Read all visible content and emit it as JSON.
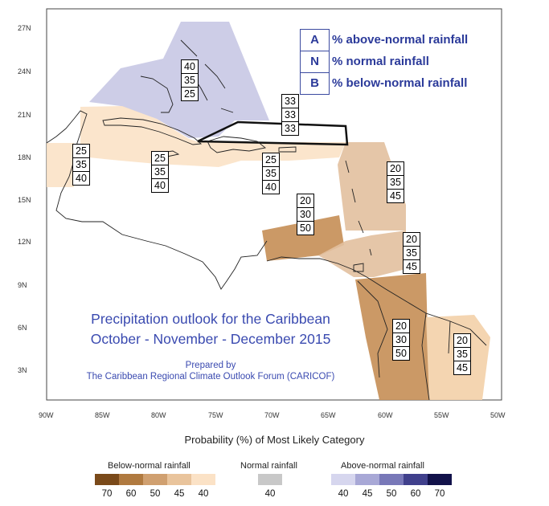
{
  "map": {
    "lat_labels": [
      "27N",
      "24N",
      "21N",
      "18N",
      "15N",
      "12N",
      "9N",
      "6N",
      "3N"
    ],
    "lon_labels": [
      "90W",
      "85W",
      "80W",
      "75W",
      "70W",
      "65W",
      "60W",
      "55W",
      "50W"
    ],
    "title_line1": "Precipitation outlook for the Caribbean",
    "title_line2": "October - November - December 2015",
    "prepared_line1": "Prepared by",
    "prepared_line2": "The Caribbean Regional Climate Outlook Forum (CARICOF)",
    "regions": [
      {
        "name": "bahamas",
        "category": "above",
        "color": "#c8c8e4",
        "probs": [
          "40",
          "35",
          "25"
        ]
      },
      {
        "name": "hispaniola-north",
        "category": "tie",
        "color": "#ffffff",
        "probs": [
          "33",
          "33",
          "33"
        ]
      },
      {
        "name": "belize",
        "category": "below",
        "color": "#fbe2c6",
        "probs": [
          "25",
          "35",
          "40"
        ]
      },
      {
        "name": "cuba-jamaica",
        "category": "below",
        "color": "#fbe2c6",
        "probs": [
          "25",
          "35",
          "40"
        ]
      },
      {
        "name": "hispaniola-puerto-rico",
        "category": "below",
        "color": "#fbe2c6",
        "probs": [
          "25",
          "35",
          "40"
        ]
      },
      {
        "name": "leeward-islands",
        "category": "below",
        "color": "#e2c09e",
        "probs": [
          "20",
          "35",
          "45"
        ]
      },
      {
        "name": "abc-islands",
        "category": "below",
        "color": "#c8935e",
        "probs": [
          "20",
          "30",
          "50"
        ]
      },
      {
        "name": "windward-islands",
        "category": "below",
        "color": "#e2c09e",
        "probs": [
          "20",
          "35",
          "45"
        ]
      },
      {
        "name": "guyana",
        "category": "below",
        "color": "#c8935e",
        "probs": [
          "20",
          "30",
          "50"
        ]
      },
      {
        "name": "suriname-french-guiana",
        "category": "below",
        "color": "#f3d3ad",
        "probs": [
          "20",
          "35",
          "45"
        ]
      }
    ]
  },
  "legend": {
    "items": [
      {
        "letter": "A",
        "text": "% above-normal rainfall"
      },
      {
        "letter": "N",
        "text": "% normal rainfall"
      },
      {
        "letter": "B",
        "text": "% below-normal rainfall"
      }
    ]
  },
  "scale": {
    "title": "Probability (%) of Most Likely Category",
    "below_label": "Below-normal rainfall",
    "normal_label": "Normal rainfall",
    "above_label": "Above-normal rainfall",
    "below": [
      {
        "value": "70",
        "color": "#7a4a1a"
      },
      {
        "value": "60",
        "color": "#b07a40"
      },
      {
        "value": "50",
        "color": "#d0a070"
      },
      {
        "value": "45",
        "color": "#e9c49c"
      },
      {
        "value": "40",
        "color": "#fbe2c6"
      }
    ],
    "normal": [
      {
        "value": "40",
        "color": "#c8c8c8"
      }
    ],
    "above": [
      {
        "value": "40",
        "color": "#d6d6ee"
      },
      {
        "value": "45",
        "color": "#a8a8d6"
      },
      {
        "value": "50",
        "color": "#7878b8"
      },
      {
        "value": "60",
        "color": "#40408c"
      },
      {
        "value": "70",
        "color": "#12124a"
      }
    ]
  }
}
